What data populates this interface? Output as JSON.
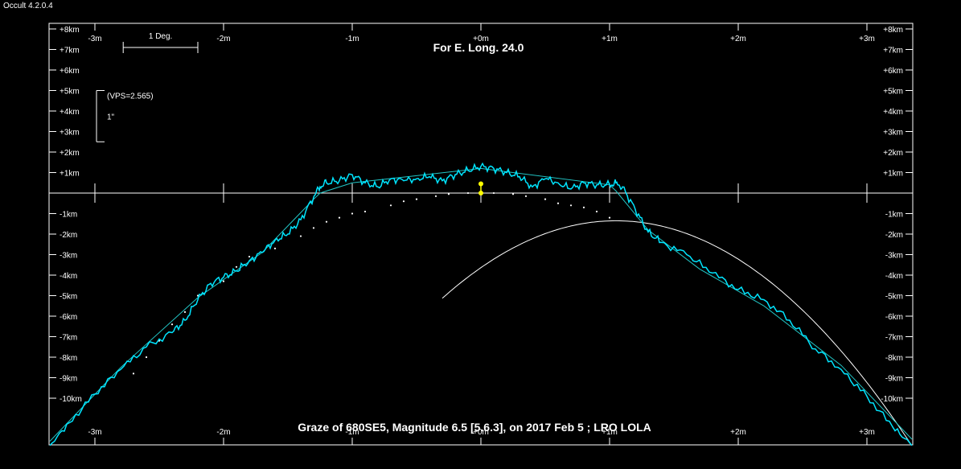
{
  "app": {
    "title": "Occult 4.2.0.4"
  },
  "chart_data": {
    "type": "line",
    "title": "For E. Long. 24.0",
    "footer": "Graze of  680SE5,  Magnitude 6.5 [5.6.3],  on 2017 Feb  5 ;  LRO LOLA",
    "xlim": [
      -3.35,
      3.35
    ],
    "ylim": [
      -12.3,
      8.2
    ],
    "x_ticks": [
      {
        "v": -3,
        "label": "-3m"
      },
      {
        "v": -2,
        "label": "-2m"
      },
      {
        "v": -1,
        "label": "-1m"
      },
      {
        "v": 0,
        "label": "+0m"
      },
      {
        "v": 1,
        "label": "+1m"
      },
      {
        "v": 2,
        "label": "+2m"
      },
      {
        "v": 3,
        "label": "+3m"
      }
    ],
    "y_ticks": [
      {
        "v": 8,
        "label": "+8km"
      },
      {
        "v": 7,
        "label": "+7km"
      },
      {
        "v": 6,
        "label": "+6km"
      },
      {
        "v": 5,
        "label": "+5km"
      },
      {
        "v": 4,
        "label": "+4km"
      },
      {
        "v": 3,
        "label": "+3km"
      },
      {
        "v": 2,
        "label": "+2km"
      },
      {
        "v": 1,
        "label": "+1km"
      },
      {
        "v": -1,
        "label": "-1km"
      },
      {
        "v": -2,
        "label": "-2km"
      },
      {
        "v": -3,
        "label": "-3km"
      },
      {
        "v": -4,
        "label": "-4km"
      },
      {
        "v": -5,
        "label": "-5km"
      },
      {
        "v": -6,
        "label": "-6km"
      },
      {
        "v": -7,
        "label": "-7km"
      },
      {
        "v": -8,
        "label": "-8km"
      },
      {
        "v": -9,
        "label": "-9km"
      },
      {
        "v": -10,
        "label": "-10km"
      }
    ],
    "scale_bar": {
      "label": "1 Deg.",
      "x_from": -2.78,
      "x_to": -2.2
    },
    "vertical_scale": {
      "vps_label": "(VPS=2.565)",
      "unit_label": "1\"",
      "y_from": 5.0,
      "y_to": 2.5
    },
    "colors": {
      "profile": "#00e5ff",
      "smooth": "#22c6c6",
      "axes": "#ffffff",
      "star": "#ffff00"
    },
    "limb_profile": {
      "x": [
        -3.35,
        -3.2,
        -3.0,
        -2.8,
        -2.6,
        -2.4,
        -2.3,
        -2.2,
        -2.1,
        -2.0,
        -1.9,
        -1.8,
        -1.7,
        -1.6,
        -1.5,
        -1.4,
        -1.3,
        -1.25,
        -1.2,
        -1.1,
        -1.0,
        -0.9,
        -0.8,
        -0.7,
        -0.6,
        -0.5,
        -0.4,
        -0.3,
        -0.2,
        -0.1,
        0.0,
        0.1,
        0.2,
        0.3,
        0.4,
        0.5,
        0.6,
        0.7,
        0.8,
        0.9,
        1.0,
        1.05,
        1.1,
        1.2,
        1.3,
        1.4,
        1.6,
        1.8,
        2.0,
        2.2,
        2.4,
        2.6,
        2.8,
        3.0,
        3.2,
        3.35
      ],
      "y": [
        -12.3,
        -11.2,
        -9.8,
        -8.6,
        -7.5,
        -6.8,
        -6.2,
        -5.2,
        -4.4,
        -4.1,
        -3.8,
        -3.3,
        -2.9,
        -2.3,
        -2.0,
        -1.3,
        -0.2,
        0.3,
        0.5,
        0.6,
        0.9,
        0.5,
        0.3,
        0.7,
        0.6,
        0.7,
        0.8,
        0.6,
        0.9,
        1.1,
        1.3,
        1.2,
        1.0,
        0.8,
        0.3,
        0.7,
        0.5,
        0.2,
        0.5,
        0.4,
        0.4,
        0.5,
        0.3,
        -0.8,
        -1.9,
        -2.4,
        -3.0,
        -3.9,
        -4.7,
        -5.2,
        -6.2,
        -7.6,
        -8.6,
        -9.9,
        -11.4,
        -12.3
      ]
    },
    "mean_limb": {
      "x": [
        -3.35,
        -2.8,
        -2.2,
        -1.7,
        -1.3,
        -1.25,
        -1.0,
        0.0,
        1.0,
        1.05,
        1.3,
        1.7,
        2.2,
        2.8,
        3.35
      ],
      "y": [
        -12.1,
        -8.5,
        -5.1,
        -2.9,
        -0.3,
        0.0,
        0.5,
        1.2,
        0.4,
        0.1,
        -1.8,
        -3.7,
        -5.5,
        -8.4,
        -12.0
      ]
    },
    "dotted_limb": {
      "x": [
        -2.7,
        -2.6,
        -2.5,
        -2.4,
        -2.3,
        -2.2,
        -2.0,
        -1.9,
        -1.8,
        -1.6,
        -1.4,
        -1.3,
        -1.2,
        -1.1,
        -1.0,
        -0.9,
        -0.7,
        -0.6,
        -0.5,
        -0.35,
        -0.25,
        -0.1,
        0.1,
        0.25,
        0.35,
        0.5,
        0.6,
        0.7,
        0.8,
        0.9,
        1.0
      ],
      "y": [
        -8.8,
        -8.0,
        -7.2,
        -6.4,
        -5.8,
        -5.0,
        -4.3,
        -3.6,
        -3.1,
        -2.7,
        -2.1,
        -1.7,
        -1.4,
        -1.2,
        -1.0,
        -0.9,
        -0.6,
        -0.4,
        -0.3,
        -0.15,
        -0.05,
        0.0,
        0.0,
        -0.05,
        -0.15,
        -0.3,
        -0.5,
        -0.6,
        -0.7,
        -0.9,
        -1.2
      ]
    },
    "parabola": {
      "vertex_x": 1.05,
      "vertex_y": -1.35,
      "width_x": 1.03
    },
    "star_path": {
      "x": 0.0,
      "y_from": 0.45,
      "y_to": 0.0
    }
  }
}
